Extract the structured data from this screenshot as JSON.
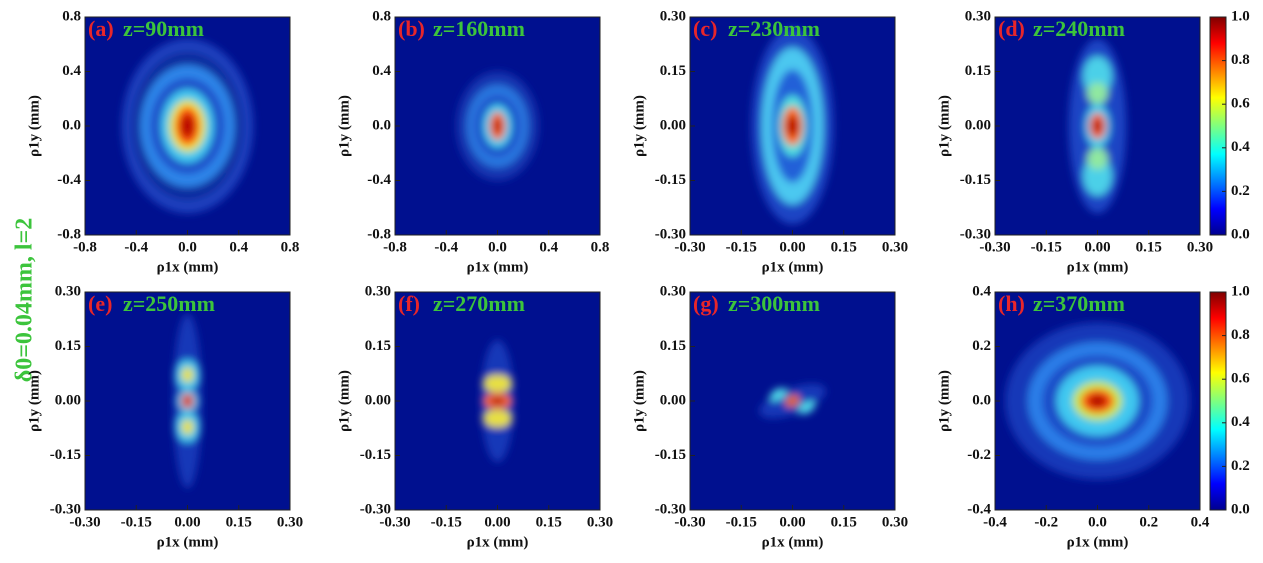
{
  "figure_label": "δ0=0.04mm, l=2",
  "chart_data": [
    {
      "type": "heatmap",
      "panel": "(a)",
      "title": "z=90mm",
      "xlabel": "ρ1x (mm)",
      "ylabel": "ρ1y (mm)",
      "xlim": [
        -0.8,
        0.8
      ],
      "xticks": [
        -0.8,
        -0.4,
        {
          "value": 0,
          "label": "0.0"
        },
        0.4,
        0.8
      ],
      "ylim": [
        -0.8,
        0.8
      ],
      "yticks": [
        -0.8,
        -0.4,
        {
          "value": 0,
          "label": "0.0"
        },
        0.4,
        0.8
      ]
    },
    {
      "type": "heatmap",
      "panel": "(b)",
      "title": "z=160mm",
      "xlabel": "ρ1x (mm)",
      "ylabel": "ρ1y (mm)",
      "xlim": [
        -0.8,
        0.8
      ],
      "xticks": [
        -0.8,
        -0.4,
        {
          "value": 0,
          "label": "0.0"
        },
        0.4,
        0.8
      ],
      "ylim": [
        -0.8,
        0.8
      ],
      "yticks": [
        -0.8,
        -0.4,
        {
          "value": 0,
          "label": "0.0"
        },
        0.4,
        0.8
      ]
    },
    {
      "type": "heatmap",
      "panel": "(c)",
      "title": "z=230mm",
      "xlabel": "ρ1x (mm)",
      "ylabel": "ρ1y (mm)",
      "xlim": [
        -0.3,
        0.3
      ],
      "xticks": [
        {
          "value": -0.3,
          "label": "-0.30"
        },
        -0.15,
        {
          "value": 0,
          "label": "0.00"
        },
        0.15,
        {
          "value": 0.3,
          "label": "0.30"
        }
      ],
      "ylim": [
        -0.3,
        0.3
      ],
      "yticks": [
        {
          "value": -0.3,
          "label": "-0.30"
        },
        -0.15,
        {
          "value": 0,
          "label": "0.00"
        },
        0.15,
        {
          "value": 0.3,
          "label": "0.30"
        }
      ]
    },
    {
      "type": "heatmap",
      "panel": "(d)",
      "title": "z=240mm",
      "xlabel": "ρ1x (mm)",
      "ylabel": "ρ1y (mm)",
      "xlim": [
        -0.3,
        0.3
      ],
      "xticks": [
        {
          "value": -0.3,
          "label": "-0.30"
        },
        -0.15,
        {
          "value": 0,
          "label": "0.00"
        },
        0.15,
        {
          "value": 0.3,
          "label": "0.30"
        }
      ],
      "ylim": [
        -0.3,
        0.3
      ],
      "yticks": [
        {
          "value": -0.3,
          "label": "-0.30"
        },
        -0.15,
        {
          "value": 0,
          "label": "0.00"
        },
        0.15,
        {
          "value": 0.3,
          "label": "0.30"
        }
      ],
      "colorbar": {
        "lim": [
          0,
          1
        ],
        "ticks": [
          {
            "value": 0,
            "label": "0.0"
          },
          0.2,
          0.4,
          0.6,
          0.8,
          {
            "value": 1,
            "label": "1.0"
          }
        ]
      }
    },
    {
      "type": "heatmap",
      "panel": "(e)",
      "title": "z=250mm",
      "xlabel": "ρ1x (mm)",
      "ylabel": "ρ1y (mm)",
      "xlim": [
        -0.3,
        0.3
      ],
      "xticks": [
        {
          "value": -0.3,
          "label": "-0.30"
        },
        -0.15,
        {
          "value": 0,
          "label": "0.00"
        },
        0.15,
        {
          "value": 0.3,
          "label": "0.30"
        }
      ],
      "ylim": [
        -0.3,
        0.3
      ],
      "yticks": [
        {
          "value": -0.3,
          "label": "-0.30"
        },
        -0.15,
        {
          "value": 0,
          "label": "0.00"
        },
        0.15,
        {
          "value": 0.3,
          "label": "0.30"
        }
      ]
    },
    {
      "type": "heatmap",
      "panel": "(f)",
      "title": "z=270mm",
      "xlabel": "ρ1x (mm)",
      "ylabel": "ρ1y (mm)",
      "xlim": [
        -0.3,
        0.3
      ],
      "xticks": [
        {
          "value": -0.3,
          "label": "-0.30"
        },
        -0.15,
        {
          "value": 0,
          "label": "0.00"
        },
        0.15,
        {
          "value": 0.3,
          "label": "0.30"
        }
      ],
      "ylim": [
        -0.3,
        0.3
      ],
      "yticks": [
        {
          "value": -0.3,
          "label": "-0.30"
        },
        -0.15,
        {
          "value": 0,
          "label": "0.00"
        },
        0.15,
        {
          "value": 0.3,
          "label": "0.30"
        }
      ]
    },
    {
      "type": "heatmap",
      "panel": "(g)",
      "title": "z=300mm",
      "xlabel": "ρ1x (mm)",
      "ylabel": "ρ1y (mm)",
      "xlim": [
        -0.3,
        0.3
      ],
      "xticks": [
        {
          "value": -0.3,
          "label": "-0.30"
        },
        -0.15,
        {
          "value": 0,
          "label": "0.00"
        },
        0.15,
        {
          "value": 0.3,
          "label": "0.30"
        }
      ],
      "ylim": [
        -0.3,
        0.3
      ],
      "yticks": [
        {
          "value": -0.3,
          "label": "-0.30"
        },
        -0.15,
        {
          "value": 0,
          "label": "0.00"
        },
        0.15,
        {
          "value": 0.3,
          "label": "0.30"
        }
      ]
    },
    {
      "type": "heatmap",
      "panel": "(h)",
      "title": "z=370mm",
      "xlabel": "ρ1x (mm)",
      "ylabel": "ρ1y (mm)",
      "xlim": [
        -0.4,
        0.4
      ],
      "xticks": [
        -0.4,
        -0.2,
        {
          "value": 0,
          "label": "0.0"
        },
        0.2,
        0.4
      ],
      "ylim": [
        -0.4,
        0.4
      ],
      "yticks": [
        -0.4,
        -0.2,
        {
          "value": 0,
          "label": "0.0"
        },
        0.2,
        0.4
      ],
      "colorbar": {
        "lim": [
          0,
          1
        ],
        "ticks": [
          {
            "value": 0,
            "label": "0.0"
          },
          0.2,
          0.4,
          0.6,
          0.8,
          {
            "value": 1,
            "label": "1.0"
          }
        ]
      }
    }
  ]
}
